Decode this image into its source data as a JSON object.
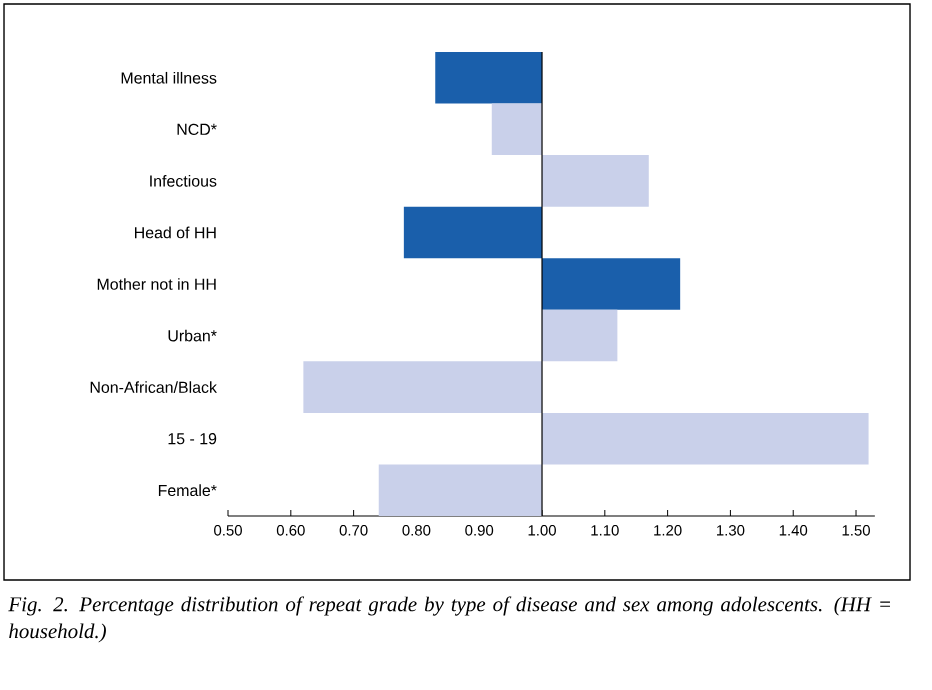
{
  "chart_data": {
    "type": "bar",
    "orientation": "horizontal",
    "categories": [
      "Mental illness",
      "NCD*",
      "Infectious",
      "Head of HH",
      "Mother not in HH",
      "Urban*",
      "Non-African/Black",
      "15 - 19",
      "Female*"
    ],
    "base": [
      1,
      1,
      1,
      1,
      1,
      1,
      1,
      1,
      1
    ],
    "values": [
      -0.17,
      -0.08,
      0.17,
      -0.22,
      0.22,
      0.12,
      -0.38,
      0.52,
      -0.26
    ],
    "colors": [
      "#1a5fab",
      "#c9d0ea",
      "#c9d0ea",
      "#1a5fab",
      "#1a5fab",
      "#c9d0ea",
      "#c9d0ea",
      "#c9d0ea",
      "#c9d0ea"
    ],
    "xlim": [
      0.5,
      1.53
    ],
    "xticks": [
      {
        "value": 0.5,
        "label": "0.50"
      },
      {
        "value": 0.6,
        "label": "0.60"
      },
      {
        "value": 0.7,
        "label": "0.70"
      },
      {
        "value": 0.8,
        "label": "0.80"
      },
      {
        "value": 0.9,
        "label": "0.90"
      },
      {
        "value": 1.0,
        "label": "1.00"
      },
      {
        "value": 1.1,
        "label": "1.10"
      },
      {
        "value": 1.2,
        "label": "1.20"
      },
      {
        "value": 1.3,
        "label": "1.30"
      },
      {
        "value": 1.4,
        "label": "1.40"
      },
      {
        "value": 1.5,
        "label": "1.50"
      }
    ],
    "annotations": [
      "*Fig. 2. Percentage distribution of repeat grade by type of disease and sex among adolescents. (HH = household.)*"
    ]
  }
}
